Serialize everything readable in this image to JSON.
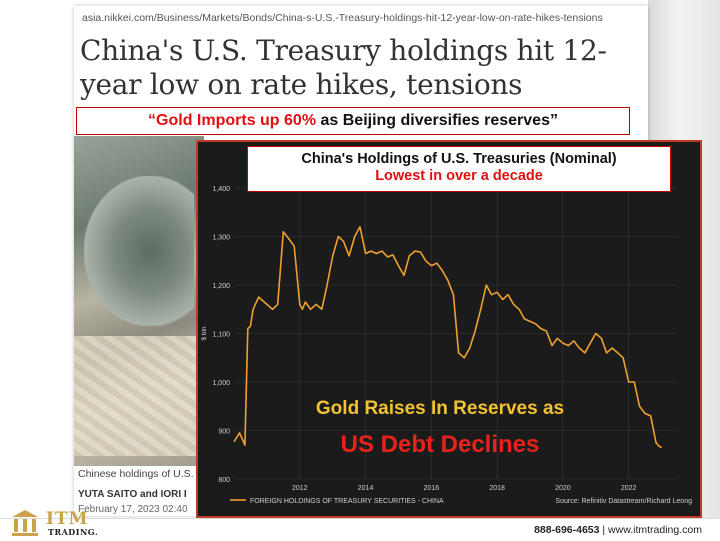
{
  "article": {
    "url": "asia.nikkei.com/Business/Markets/Bonds/China-s-U.S.-Treasury-holdings-hit-12-year-low-on-rate-hikes-tensions",
    "headline": "China's U.S. Treasury holdings hit 12-year low on rate hikes, tensions",
    "caption": "Chinese holdings of U.S.",
    "authors": "YUTA SAITO and IORI I",
    "date": "February 17, 2023 02:40"
  },
  "quote": {
    "highlight": "“Gold Imports up 60%",
    "rest": " as Beijing diversifies reserves”"
  },
  "chart_data": {
    "type": "line",
    "title": "China's Holdings of U.S. Treasuries (Nominal)",
    "subtitle": "Lowest in over a decade",
    "ylabel": "$ bln",
    "ylim": [
      800,
      1400
    ],
    "yticks": [
      "800",
      "900",
      "1,000",
      "1,100",
      "1,200",
      "1,300",
      "1,400"
    ],
    "xlim": [
      2010.0,
      2023.5
    ],
    "xticks": [
      "2012",
      "2014",
      "2016",
      "2018",
      "2020",
      "2022"
    ],
    "series": [
      {
        "name": "FOREIGN HOLDINGS OF TREASURY SECURITIES - CHINA",
        "color": "#f0a030",
        "x": [
          2010.0,
          2010.17,
          2010.33,
          2010.42,
          2010.5,
          2010.58,
          2010.75,
          2011.0,
          2011.17,
          2011.33,
          2011.5,
          2011.67,
          2011.83,
          2012.0,
          2012.08,
          2012.17,
          2012.33,
          2012.5,
          2012.67,
          2012.83,
          2013.0,
          2013.17,
          2013.33,
          2013.5,
          2013.67,
          2013.83,
          2014.0,
          2014.17,
          2014.33,
          2014.5,
          2014.67,
          2014.83,
          2015.0,
          2015.17,
          2015.33,
          2015.5,
          2015.67,
          2015.83,
          2016.0,
          2016.17,
          2016.33,
          2016.5,
          2016.67,
          2016.83,
          2017.0,
          2017.17,
          2017.33,
          2017.5,
          2017.67,
          2017.83,
          2018.0,
          2018.17,
          2018.33,
          2018.5,
          2018.67,
          2018.83,
          2019.0,
          2019.17,
          2019.33,
          2019.5,
          2019.67,
          2019.83,
          2020.0,
          2020.17,
          2020.33,
          2020.5,
          2020.67,
          2020.83,
          2021.0,
          2021.17,
          2021.33,
          2021.5,
          2021.67,
          2021.83,
          2022.0,
          2022.17,
          2022.33,
          2022.5,
          2022.67,
          2022.83,
          2022.92,
          2023.0
        ],
        "y": [
          877,
          895,
          870,
          1110,
          1115,
          1150,
          1175,
          1160,
          1150,
          1160,
          1310,
          1295,
          1280,
          1160,
          1150,
          1165,
          1150,
          1160,
          1150,
          1200,
          1260,
          1300,
          1290,
          1260,
          1300,
          1320,
          1265,
          1270,
          1265,
          1270,
          1258,
          1262,
          1240,
          1220,
          1260,
          1270,
          1268,
          1250,
          1240,
          1245,
          1230,
          1210,
          1180,
          1060,
          1050,
          1070,
          1105,
          1150,
          1200,
          1180,
          1185,
          1170,
          1180,
          1160,
          1150,
          1130,
          1125,
          1120,
          1110,
          1105,
          1075,
          1090,
          1080,
          1075,
          1085,
          1070,
          1060,
          1080,
          1100,
          1090,
          1060,
          1070,
          1060,
          1050,
          1000,
          1000,
          950,
          935,
          930,
          875,
          868,
          865
        ]
      }
    ],
    "source": "Source: Refinitiv Datastream/Richard Leong"
  },
  "annotation": {
    "line1": "Gold Raises In Reserves as",
    "line2": "US Debt Declines"
  },
  "footer": {
    "phone": "888-696-4653",
    "separator": " | ",
    "website": "www.itmtrading.com",
    "logo_name": "ITM",
    "logo_sub": "TRADING."
  }
}
